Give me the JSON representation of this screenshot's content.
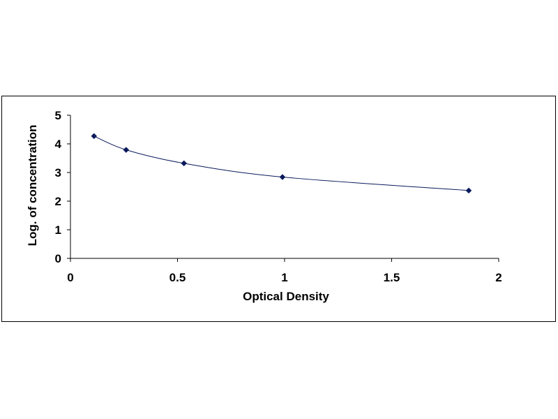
{
  "chart_data": {
    "type": "scatter",
    "title": "",
    "xlabel": "Optical Density",
    "ylabel": "Log. of concentration",
    "xlim": [
      0,
      2
    ],
    "ylim": [
      0,
      5
    ],
    "x_ticks": [
      0,
      0.5,
      1,
      1.5,
      2
    ],
    "x_tick_labels": [
      "0",
      "0.5",
      "1",
      "1.5",
      "2"
    ],
    "y_ticks": [
      0,
      1,
      2,
      3,
      4,
      5
    ],
    "y_tick_labels": [
      "0",
      "1",
      "2",
      "3",
      "4",
      "5"
    ],
    "grid": false,
    "legend": "none",
    "series": [
      {
        "points": [
          {
            "x": 0.11,
            "y": 4.27
          },
          {
            "x": 0.26,
            "y": 3.79
          },
          {
            "x": 0.53,
            "y": 3.32
          },
          {
            "x": 0.99,
            "y": 2.84
          },
          {
            "x": 1.86,
            "y": 2.37
          }
        ],
        "marker": "diamond",
        "marker_color": "#0b1a5c",
        "line_color": "#0b1a5c",
        "fit": "smooth-curve"
      }
    ]
  }
}
